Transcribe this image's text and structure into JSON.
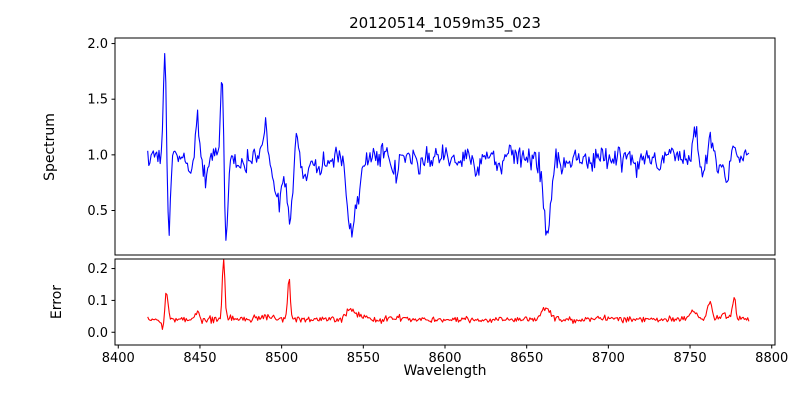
{
  "chart_data": {
    "type": "line",
    "title": "20120514_1059m35_023",
    "xlabel": "Wavelength",
    "background": "#ffffff",
    "xlim": [
      8398,
      8802
    ],
    "x_range": [
      8418,
      8786
    ],
    "x_ticks": [
      {
        "v": 8400,
        "label": "8400"
      },
      {
        "v": 8450,
        "label": "8450"
      },
      {
        "v": 8500,
        "label": "8500"
      },
      {
        "v": 8550,
        "label": "8550"
      },
      {
        "v": 8600,
        "label": "8600"
      },
      {
        "v": 8650,
        "label": "8650"
      },
      {
        "v": 8700,
        "label": "8700"
      },
      {
        "v": 8750,
        "label": "8750"
      },
      {
        "v": 8800,
        "label": "8800"
      }
    ],
    "panels": [
      {
        "name": "spectrum",
        "ylabel": "Spectrum",
        "color": "#0000ff",
        "ylim": [
          0.1,
          2.05
        ],
        "y_ticks": [
          {
            "v": 0.5,
            "label": "0.5"
          },
          {
            "v": 1.0,
            "label": "1.0"
          },
          {
            "v": 1.5,
            "label": "1.5"
          },
          {
            "v": 2.0,
            "label": "2.0"
          }
        ],
        "baseline": 0.98,
        "noise_std": 0.05,
        "features": [
          [
            8428.5,
            0.97,
            0.9
          ],
          [
            8430.8,
            -0.7,
            1.0
          ],
          [
            8444,
            -0.12,
            1.5
          ],
          [
            8448.5,
            0.34,
            1.2
          ],
          [
            8453,
            -0.18,
            1.5
          ],
          [
            8463.5,
            0.8,
            0.9
          ],
          [
            8466,
            -0.75,
            1.1
          ],
          [
            8475,
            -0.1,
            2.0
          ],
          [
            8490,
            0.26,
            1.4
          ],
          [
            8494,
            -0.15,
            1.5
          ],
          [
            8498.5,
            -0.4,
            1.8
          ],
          [
            8505,
            -0.55,
            1.8
          ],
          [
            8509,
            0.22,
            1.0
          ],
          [
            8514,
            -0.12,
            2.0
          ],
          [
            8523,
            -0.1,
            2.0
          ],
          [
            8542.5,
            -0.62,
            2.2
          ],
          [
            8547,
            -0.25,
            2.0
          ],
          [
            8570,
            -0.16,
            2.0
          ],
          [
            8585,
            -0.08,
            2.0
          ],
          [
            8620,
            -0.12,
            2.0
          ],
          [
            8634,
            -0.1,
            2.0
          ],
          [
            8662.5,
            -0.64,
            2.4
          ],
          [
            8674,
            -0.08,
            2.0
          ],
          [
            8688,
            -0.12,
            2.0
          ],
          [
            8717,
            -0.1,
            2.0
          ],
          [
            8730,
            -0.08,
            2.0
          ],
          [
            8753,
            0.22,
            1.5
          ],
          [
            8757.5,
            -0.18,
            1.2
          ],
          [
            8762,
            0.18,
            1.0
          ],
          [
            8768,
            -0.1,
            1.5
          ],
          [
            8772.5,
            -0.28,
            1.3
          ],
          [
            8777,
            0.16,
            1.0
          ]
        ]
      },
      {
        "name": "error",
        "ylabel": "Error",
        "color": "#ff0000",
        "ylim": [
          -0.04,
          0.23
        ],
        "y_ticks": [
          {
            "v": 0.0,
            "label": "0.0"
          },
          {
            "v": 0.1,
            "label": "0.1"
          },
          {
            "v": 0.2,
            "label": "0.2"
          }
        ],
        "baseline": 0.04,
        "noise_std": 0.005,
        "features": [
          [
            8427,
            -0.028,
            1.0
          ],
          [
            8429.5,
            0.088,
            0.9
          ],
          [
            8448,
            0.022,
            1.3
          ],
          [
            8464.5,
            0.185,
            0.8
          ],
          [
            8490,
            0.008,
            6.0
          ],
          [
            8504.5,
            0.135,
            0.8
          ],
          [
            8542,
            0.03,
            2.5
          ],
          [
            8548,
            0.012,
            2.0
          ],
          [
            8570,
            0.006,
            3.0
          ],
          [
            8662,
            0.035,
            2.5
          ],
          [
            8700,
            0.004,
            5.0
          ],
          [
            8752,
            0.03,
            2.0
          ],
          [
            8762,
            0.055,
            1.2
          ],
          [
            8770,
            0.015,
            2.0
          ],
          [
            8777,
            0.065,
            1.1
          ]
        ]
      }
    ]
  }
}
